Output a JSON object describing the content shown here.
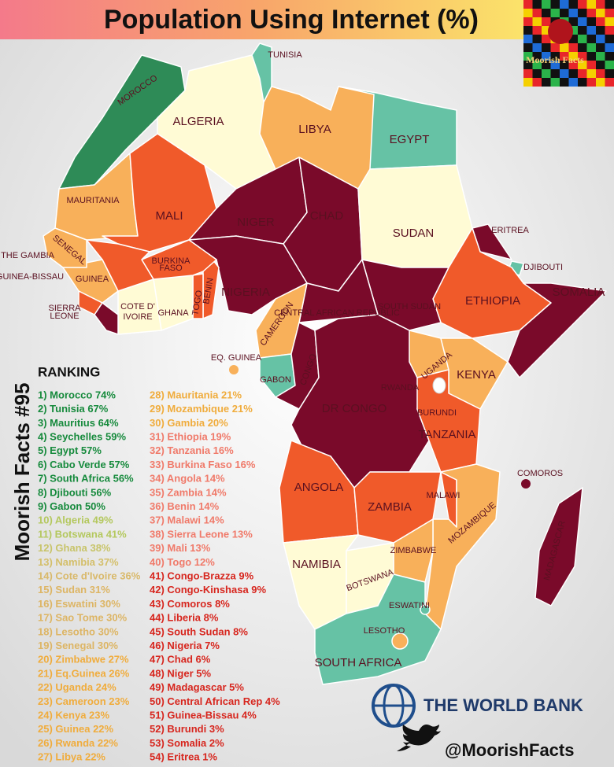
{
  "header": {
    "title": "Population Using Internet (%)",
    "logo": "Moorish Facts"
  },
  "side_caption": "Moorish Facts #95",
  "map": {
    "labels": [
      "MOROCCO",
      "TUNISIA",
      "ALGERIA",
      "LIBYA",
      "EGYPT",
      "MAURITANIA",
      "MALI",
      "NIGER",
      "CHAD",
      "SUDAN",
      "ERITREA",
      "DJIBOUTI",
      "SENEGAL",
      "THE GAMBIA",
      "GUINEA-BISSAU",
      "GUINEA",
      [
        "BURKINA",
        "FASO"
      ],
      "BENIN",
      "TOGO",
      "NIGERIA",
      "ETHIOPIA",
      "SOMALIA",
      [
        "SIERRA",
        "LEONE"
      ],
      [
        "COTE D'",
        "IVOIRE"
      ],
      "GHANA",
      "CAMEROON",
      "CENTRAL AFRICAN REPUBLIC",
      "SOUTH SUDAN",
      "EQ. GUINEA",
      "GABON",
      "CONGO",
      "DR CONGO",
      "UGANDA",
      "KENYA",
      "RWANDA",
      "BURUNDI",
      "TANZANIA",
      "COMOROS",
      "ANGOLA",
      "ZAMBIA",
      "MALAWI",
      "MOZAMBIQUE",
      "ZIMBABWE",
      "NAMIBIA",
      "BOTSWANA",
      "ESWATINI",
      "LESOTHO",
      "SOUTH AFRICA",
      "MADAGASCAR"
    ]
  },
  "ranking": {
    "title": "RANKING",
    "items": [
      {
        "text": "1) Morocco 74%",
        "color": "#168a3c"
      },
      {
        "text": "2) Tunisia 67%",
        "color": "#168a3c"
      },
      {
        "text": "3) Mauritius 64%",
        "color": "#168a3c"
      },
      {
        "text": "4) Seychelles 59%",
        "color": "#168a3c"
      },
      {
        "text": "5) Egypt 57%",
        "color": "#168a3c"
      },
      {
        "text": "6) Cabo Verde 57%",
        "color": "#168a3c"
      },
      {
        "text": "7) South Africa 56%",
        "color": "#168a3c"
      },
      {
        "text": "8) Djibouti 56%",
        "color": "#168a3c"
      },
      {
        "text": "9) Gabon 50%",
        "color": "#168a3c"
      },
      {
        "text": "10) Algeria 49%",
        "color": "#b4c85e"
      },
      {
        "text": "11) Botswana 41%",
        "color": "#b4c85e"
      },
      {
        "text": "12) Ghana 38%",
        "color": "#c8c46a"
      },
      {
        "text": "13) Namibia 37%",
        "color": "#d4bf6a"
      },
      {
        "text": "14) Cote d'Ivoire 36%",
        "color": "#d9b96a"
      },
      {
        "text": "15) Sudan 31%",
        "color": "#ddb564"
      },
      {
        "text": "16) Eswatini 30%",
        "color": "#ddb564"
      },
      {
        "text": "17) Sao Tome 30%",
        "color": "#ddb564"
      },
      {
        "text": "18) Lesotho 30%",
        "color": "#ddb564"
      },
      {
        "text": "19) Senegal 30%",
        "color": "#ddb564"
      },
      {
        "text": "20) Zimbabwe 27%",
        "color": "#f0ac3c"
      },
      {
        "text": "21) Eq.Guinea 26%",
        "color": "#f0ac3c"
      },
      {
        "text": "22) Uganda 24%",
        "color": "#f0ac3c"
      },
      {
        "text": "23) Cameroon 23%",
        "color": "#f0ac3c"
      },
      {
        "text": "24) Kenya 23%",
        "color": "#f0ac3c"
      },
      {
        "text": "25) Guinea 22%",
        "color": "#f0ac3c"
      },
      {
        "text": "26) Rwanda 22%",
        "color": "#f0ac3c"
      },
      {
        "text": "27) Libya 22%",
        "color": "#f0ac3c"
      },
      {
        "text": "28) Mauritania 21%",
        "color": "#f0ac3c"
      },
      {
        "text": "29) Mozambique 21%",
        "color": "#f0ac3c"
      },
      {
        "text": "30) Gambia 20%",
        "color": "#f0ac3c"
      },
      {
        "text": "31) Ethiopia 19%",
        "color": "#f07a6a"
      },
      {
        "text": "32) Tanzania 16%",
        "color": "#f07a6a"
      },
      {
        "text": "33) Burkina Faso 16%",
        "color": "#f07a6a"
      },
      {
        "text": "34) Angola 14%",
        "color": "#f07a6a"
      },
      {
        "text": "35) Zambia 14%",
        "color": "#f07a6a"
      },
      {
        "text": "36) Benin 14%",
        "color": "#f07a6a"
      },
      {
        "text": "37) Malawi 14%",
        "color": "#f07a6a"
      },
      {
        "text": "38) Sierra Leone 13%",
        "color": "#f07a6a"
      },
      {
        "text": "39) Mali 13%",
        "color": "#f07a6a"
      },
      {
        "text": "40) Togo 12%",
        "color": "#f07a6a"
      },
      {
        "text": "41) Congo-Brazza 9%",
        "color": "#d7261e"
      },
      {
        "text": "42) Congo-Kinshasa 9%",
        "color": "#d7261e"
      },
      {
        "text": "43) Comoros 8%",
        "color": "#d7261e"
      },
      {
        "text": "44) Liberia 8%",
        "color": "#d7261e"
      },
      {
        "text": "45) South Sudan 8%",
        "color": "#d7261e"
      },
      {
        "text": "46) Nigeria 7%",
        "color": "#d7261e"
      },
      {
        "text": "47) Chad 6%",
        "color": "#d7261e"
      },
      {
        "text": "48) Niger 5%",
        "color": "#d7261e"
      },
      {
        "text": "49) Madagascar 5%",
        "color": "#d7261e"
      },
      {
        "text": "50) Central African Rep 4%",
        "color": "#d7261e"
      },
      {
        "text": "51) Guinea-Bissau 4%",
        "color": "#d7261e"
      },
      {
        "text": "52) Burundi 3%",
        "color": "#d7261e"
      },
      {
        "text": "53) Somalia 2%",
        "color": "#d7261e"
      },
      {
        "text": "54) Eritrea 1%",
        "color": "#d7261e"
      }
    ]
  },
  "footer": {
    "source": "THE WORLD BANK",
    "handle": "@MoorishFacts"
  }
}
